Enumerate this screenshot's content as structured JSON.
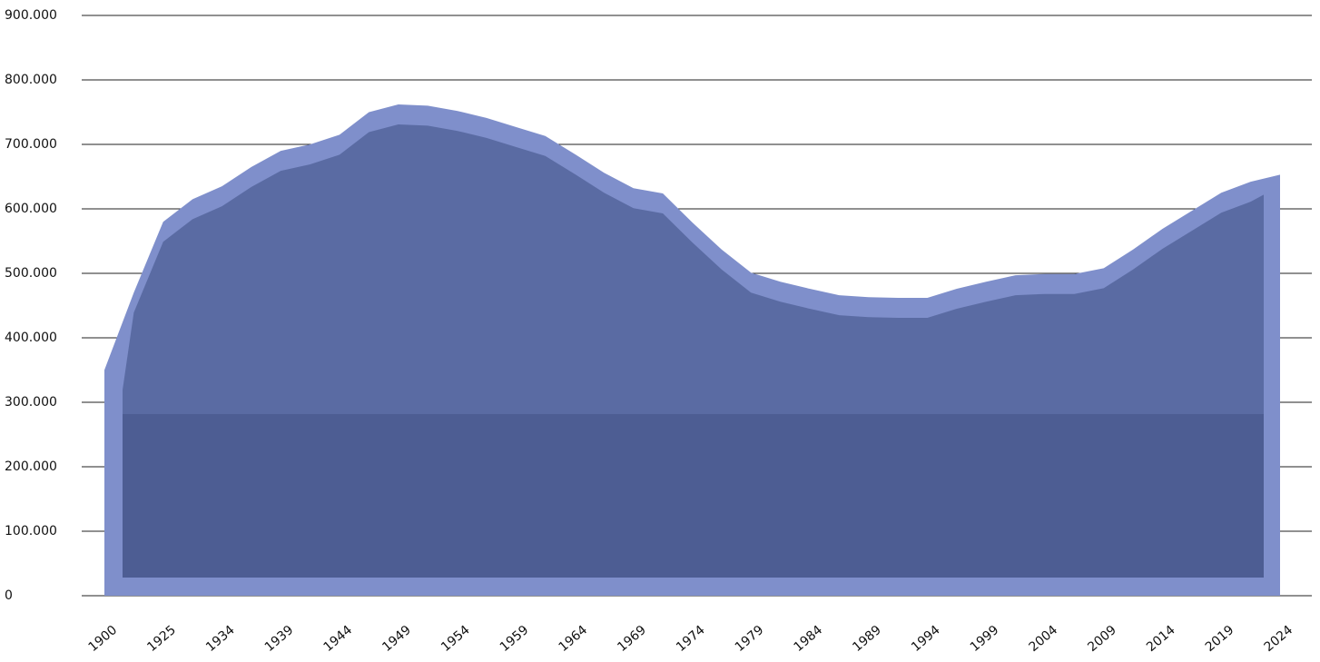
{
  "chart_data": {
    "type": "area",
    "categories": [
      "1900",
      null,
      "1925",
      null,
      "1934",
      null,
      "1939",
      null,
      "1944",
      null,
      "1949",
      null,
      "1954",
      null,
      "1959",
      null,
      "1964",
      null,
      "1969",
      null,
      "1974",
      null,
      "1979",
      null,
      "1984",
      null,
      "1989",
      null,
      "1994",
      null,
      "1999",
      null,
      "2004",
      null,
      "2009",
      null,
      "2014",
      null,
      "2019",
      null,
      "2024"
    ],
    "values": [
      350000,
      470000,
      580000,
      615000,
      635000,
      665000,
      690000,
      700000,
      715000,
      750000,
      762000,
      760000,
      752000,
      741000,
      727000,
      713000,
      685000,
      656000,
      632000,
      624000,
      579000,
      537000,
      501000,
      487000,
      476000,
      466000,
      463000,
      462000,
      462000,
      476000,
      487000,
      497000,
      499000,
      499000,
      508000,
      537000,
      569000,
      597000,
      625000,
      642000,
      653000
    ],
    "color": "#7f8fcb",
    "ylim": [
      0,
      900000
    ],
    "yticks": [
      0,
      {
        "value": 100000,
        "label": "100.000"
      },
      {
        "value": 200000,
        "label": "200.000"
      },
      {
        "value": 300000,
        "label": "300.000"
      },
      {
        "value": 400000,
        "label": "400.000"
      },
      {
        "value": 500000,
        "label": "500.000"
      },
      {
        "value": 600000,
        "label": "600.000"
      },
      {
        "value": 700000,
        "label": "700.000"
      },
      {
        "value": 800000,
        "label": "800.000"
      },
      {
        "value": 900000,
        "label": "900.000"
      }
    ],
    "grid": true
  }
}
